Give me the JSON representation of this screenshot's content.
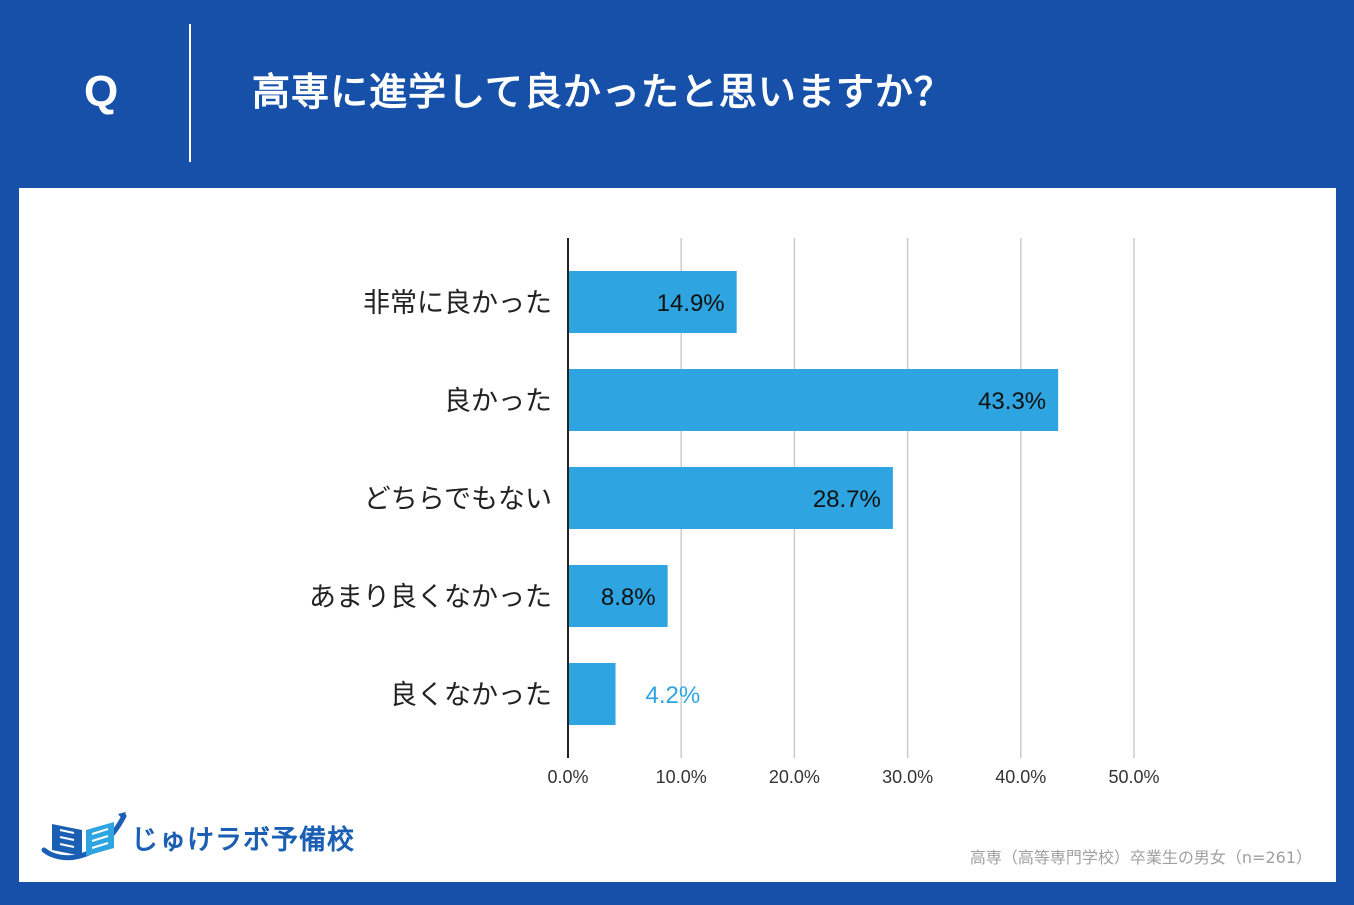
{
  "header": {
    "q_mark": "Q",
    "question": "高専に進学して良かったと思いますか？"
  },
  "colors": {
    "background": "#1650a8",
    "bar": "#2ea5e0",
    "panel": "#ffffff",
    "gridline": "#cccccc",
    "outside_label": "#2ea5e0"
  },
  "chart_data": {
    "type": "bar",
    "orientation": "horizontal",
    "title": "高専に進学して良かったと思いますか？",
    "categories": [
      "非常に良かった",
      "良かった",
      "どちらでもない",
      "あまり良くなかった",
      "良くなかった"
    ],
    "values": [
      14.9,
      43.3,
      28.7,
      8.8,
      4.2
    ],
    "value_labels": [
      "14.9%",
      "43.3%",
      "28.7%",
      "8.8%",
      "4.2%"
    ],
    "xlim": [
      0,
      50
    ],
    "xticks": [
      0,
      10,
      20,
      30,
      40,
      50
    ],
    "xtick_labels": [
      "0.0%",
      "10.0%",
      "20.0%",
      "30.0%",
      "40.0%",
      "50.0%"
    ],
    "grid": true,
    "xlabel": "",
    "ylabel": ""
  },
  "logo": {
    "text": "じゅけラボ予備校",
    "icon": "book-icon"
  },
  "footer": {
    "source_note": "高専（高等専門学校）卒業生の男女（n=261）"
  }
}
